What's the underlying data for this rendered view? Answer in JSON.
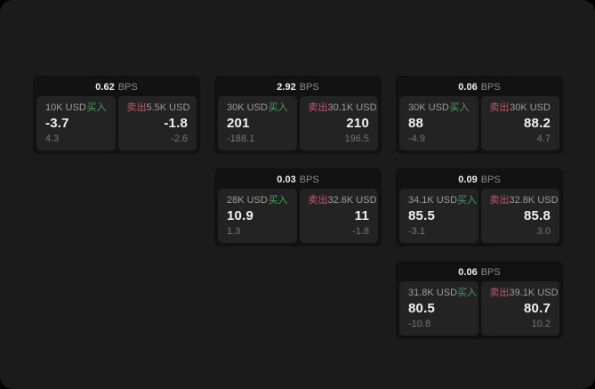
{
  "labels": {
    "bps_unit": "BPS",
    "buy": "买入",
    "sell": "卖出"
  },
  "colors": {
    "outside": "#000000",
    "surface": "#1b1b1b",
    "card": "#121212",
    "panel": "#232323",
    "text": "#f0f0f0",
    "muted": "#9c9c9c",
    "dim": "#767676",
    "unit": "#8b8b8b",
    "buy": "#47a05c",
    "sell": "#bf5a67"
  },
  "cards": [
    {
      "bps": "0.62",
      "buy": {
        "amount": "10K USD",
        "price": "-3.7",
        "delta": "4.3"
      },
      "sell": {
        "amount": "5.5K USD",
        "price": "-1.8",
        "delta": "-2.6"
      }
    },
    {
      "bps": "2.92",
      "buy": {
        "amount": "30K USD",
        "price": "201",
        "delta": "-188.1"
      },
      "sell": {
        "amount": "30.1K USD",
        "price": "210",
        "delta": "196.5"
      }
    },
    {
      "bps": "0.06",
      "buy": {
        "amount": "30K USD",
        "price": "88",
        "delta": "-4.9"
      },
      "sell": {
        "amount": "30K USD",
        "price": "88.2",
        "delta": "4.7"
      }
    },
    {
      "bps": "0.03",
      "buy": {
        "amount": "28K USD",
        "price": "10.9",
        "delta": "1.3"
      },
      "sell": {
        "amount": "32.6K USD",
        "price": "11",
        "delta": "-1.8"
      }
    },
    {
      "bps": "0.09",
      "buy": {
        "amount": "34.1K USD",
        "price": "85.5",
        "delta": "-3.1"
      },
      "sell": {
        "amount": "32.8K USD",
        "price": "85.8",
        "delta": "3.0"
      }
    },
    {
      "bps": "0.06",
      "buy": {
        "amount": "31.8K USD",
        "price": "80.5",
        "delta": "-10.8"
      },
      "sell": {
        "amount": "39.1K USD",
        "price": "80.7",
        "delta": "10.2"
      }
    }
  ]
}
